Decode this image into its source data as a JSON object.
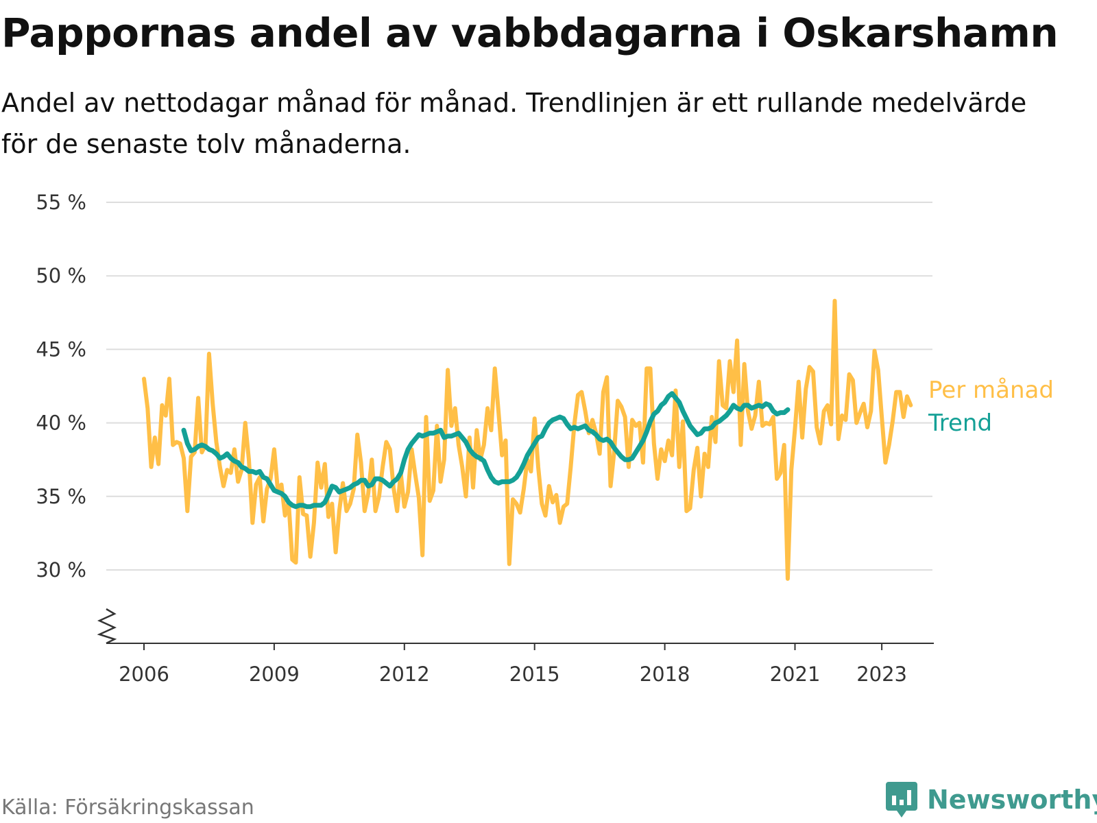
{
  "title": "Pappornas andel av vabbdagarna i Oskarshamn",
  "subtitle": "Andel av nettodagar månad för månad. Trendlinjen är ett rullande medelvärde för de senaste tolv månaderna.",
  "source": "Källa: Försäkringskassan",
  "brand": {
    "name": "Newsworthy",
    "icon": "newsworthy-chart-bubble-icon"
  },
  "colors": {
    "monthly": "#ffbf47",
    "trend": "#14a096",
    "grid": "#dddddd",
    "axis": "#333333",
    "brand": "#3f9a8f"
  },
  "chart_data": {
    "type": "line",
    "title": "Pappornas andel av vabbdagarna i Oskarshamn",
    "y_tick_labels": [
      "55 %",
      "50 %",
      "45 %",
      "40 %",
      "35 %",
      "30 %"
    ],
    "y_tick_values": [
      55,
      50,
      45,
      40,
      35,
      30
    ],
    "x_tick_labels": [
      "2006",
      "2009",
      "2012",
      "2015",
      "2018",
      "2021",
      "2023"
    ],
    "x_tick_values": [
      2006,
      2009,
      2012,
      2015,
      2018,
      2021,
      2023
    ],
    "ylim": [
      25,
      55
    ],
    "y_axis_break": true,
    "xlim": [
      2005.8,
      2024.2
    ],
    "grid": true,
    "legend_placement": "right-end-labels",
    "series": [
      {
        "name": "Per månad",
        "start": "2006-01",
        "step": "month",
        "values": [
          43.0,
          41.0,
          37.0,
          39.0,
          37.2,
          41.2,
          40.5,
          43.0,
          38.5,
          38.7,
          38.6,
          37.6,
          34.0,
          37.7,
          38.0,
          41.7,
          38.0,
          38.5,
          44.7,
          41.3,
          38.7,
          37.0,
          35.7,
          36.8,
          36.6,
          38.2,
          36.0,
          36.8,
          40.0,
          37.5,
          33.2,
          35.8,
          36.3,
          33.3,
          35.5,
          36.2,
          38.2,
          35.4,
          35.8,
          33.7,
          34.6,
          30.7,
          30.5,
          36.3,
          33.8,
          33.7,
          30.9,
          33.2,
          37.3,
          35.6,
          37.2,
          33.6,
          34.5,
          31.2,
          34.0,
          35.9,
          34.0,
          34.5,
          35.5,
          39.2,
          37.3,
          34.0,
          35.2,
          37.5,
          34.0,
          35.0,
          37.0,
          38.7,
          38.2,
          35.6,
          34.0,
          36.6,
          34.3,
          35.3,
          38.2,
          36.5,
          34.9,
          31.0,
          40.4,
          34.7,
          35.4,
          39.8,
          36.0,
          37.5,
          43.6,
          39.8,
          41.0,
          38.5,
          37.0,
          35.0,
          39.0,
          35.6,
          39.5,
          37.5,
          38.5,
          41.0,
          39.5,
          43.7,
          40.8,
          37.8,
          38.8,
          30.4,
          34.8,
          34.5,
          33.9,
          35.5,
          37.5,
          36.7,
          40.3,
          37.0,
          34.5,
          33.7,
          35.7,
          34.6,
          35.1,
          33.2,
          34.3,
          34.5,
          37.0,
          39.9,
          41.9,
          42.1,
          40.8,
          39.3,
          40.2,
          39.3,
          37.9,
          42.1,
          43.1,
          35.7,
          38.0,
          41.5,
          41.1,
          40.4,
          37.0,
          40.2,
          39.8,
          40.0,
          37.3,
          43.7,
          43.7,
          38.6,
          36.2,
          38.2,
          37.4,
          38.8,
          37.8,
          42.2,
          37.0,
          40.1,
          34.0,
          34.2,
          36.8,
          38.3,
          35.0,
          37.9,
          37.0,
          40.4,
          38.7,
          44.2,
          41.2,
          41.0,
          44.2,
          42.1,
          45.6,
          38.5,
          44.0,
          40.8,
          39.6,
          40.5,
          42.8,
          39.8,
          40.0,
          39.9,
          40.4,
          36.2,
          36.6,
          38.5,
          29.4,
          36.8,
          39.6,
          42.8,
          39.0,
          42.3,
          43.8,
          43.5,
          39.7,
          38.6,
          40.8,
          41.2,
          39.9,
          48.3,
          38.9,
          40.5,
          40.2,
          43.3,
          42.9,
          40.0,
          40.7,
          41.3,
          39.7,
          40.8,
          44.9,
          43.6,
          40.4,
          37.3,
          38.5,
          40.1,
          42.1,
          42.1,
          40.4,
          41.8,
          41.2
        ]
      },
      {
        "name": "Trend",
        "start": "2006-12",
        "step": "month",
        "values": [
          39.5,
          38.6,
          38.1,
          38.2,
          38.4,
          38.5,
          38.4,
          38.2,
          38.1,
          37.9,
          37.6,
          37.7,
          37.9,
          37.6,
          37.4,
          37.3,
          37.0,
          36.9,
          36.7,
          36.7,
          36.6,
          36.7,
          36.3,
          36.2,
          35.8,
          35.4,
          35.3,
          35.2,
          35.0,
          34.6,
          34.4,
          34.3,
          34.4,
          34.4,
          34.3,
          34.3,
          34.4,
          34.4,
          34.4,
          34.6,
          35.1,
          35.7,
          35.6,
          35.3,
          35.4,
          35.5,
          35.6,
          35.8,
          35.9,
          36.1,
          36.1,
          35.7,
          35.8,
          36.2,
          36.2,
          36.1,
          35.9,
          35.7,
          36.0,
          36.2,
          36.6,
          37.5,
          38.2,
          38.6,
          38.9,
          39.2,
          39.1,
          39.2,
          39.3,
          39.3,
          39.4,
          39.5,
          39.0,
          39.1,
          39.1,
          39.2,
          39.3,
          39.0,
          38.7,
          38.2,
          37.9,
          37.7,
          37.6,
          37.4,
          36.8,
          36.3,
          36.0,
          35.9,
          36.0,
          36.0,
          36.0,
          36.1,
          36.3,
          36.7,
          37.2,
          37.8,
          38.2,
          38.6,
          39.0,
          39.1,
          39.6,
          40.0,
          40.2,
          40.3,
          40.4,
          40.3,
          39.9,
          39.6,
          39.7,
          39.6,
          39.7,
          39.8,
          39.5,
          39.4,
          39.2,
          38.9,
          38.8,
          38.9,
          38.7,
          38.3,
          38.0,
          37.7,
          37.5,
          37.5,
          37.6,
          38.0,
          38.4,
          38.8,
          39.4,
          40.1,
          40.6,
          40.8,
          41.2,
          41.4,
          41.8,
          42.0,
          41.7,
          41.4,
          40.8,
          40.3,
          39.8,
          39.5,
          39.2,
          39.3,
          39.6,
          39.6,
          39.7,
          40.0,
          40.1,
          40.3,
          40.5,
          40.8,
          41.2,
          41.0,
          40.9,
          41.2,
          41.2,
          41.0,
          41.1,
          41.2,
          41.1,
          41.3,
          41.2,
          40.8,
          40.6,
          40.7,
          40.7,
          40.9
        ]
      }
    ]
  }
}
